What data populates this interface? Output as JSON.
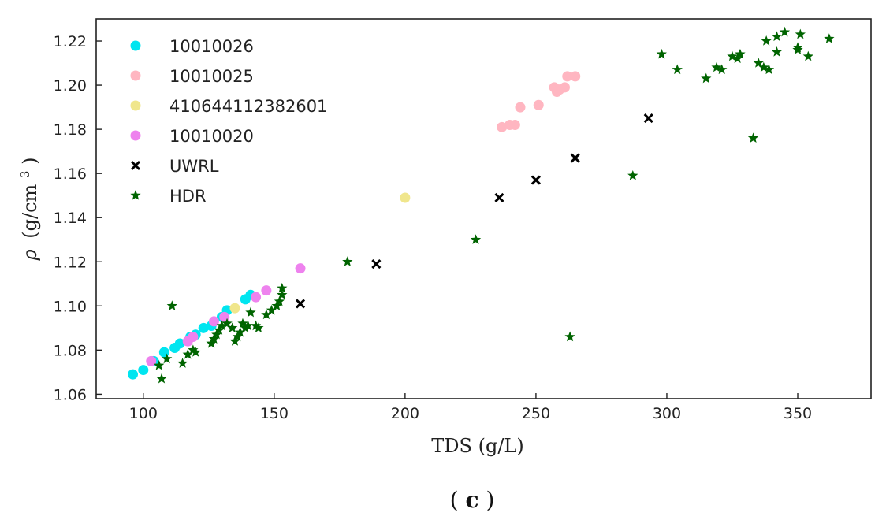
{
  "chart_data": {
    "type": "scatter",
    "title": "",
    "xlabel": "TDS (g/L)",
    "ylabel_symbol": "ρ",
    "ylabel_units": "(g/cm",
    "ylabel_sup": "3",
    "ylabel_close": ")",
    "xlim": [
      82,
      378
    ],
    "ylim": [
      1.058,
      1.23
    ],
    "xticks": [
      100,
      150,
      200,
      250,
      300,
      350
    ],
    "yticks": [
      1.06,
      1.08,
      1.1,
      1.12,
      1.14,
      1.16,
      1.18,
      1.2,
      1.22
    ],
    "grid": false,
    "legend_position": "top-left",
    "caption_open": "(",
    "caption_letter": "c",
    "caption_close": ")",
    "series": [
      {
        "name": "10010026",
        "marker": "circle",
        "color": "#00e5f0",
        "points": [
          [
            96,
            1.069
          ],
          [
            100,
            1.071
          ],
          [
            104,
            1.075
          ],
          [
            108,
            1.079
          ],
          [
            112,
            1.081
          ],
          [
            114,
            1.083
          ],
          [
            118,
            1.086
          ],
          [
            120,
            1.087
          ],
          [
            123,
            1.09
          ],
          [
            126,
            1.091
          ],
          [
            130,
            1.095
          ],
          [
            132,
            1.098
          ],
          [
            139,
            1.103
          ],
          [
            141,
            1.105
          ]
        ]
      },
      {
        "name": "10010025",
        "marker": "circle",
        "color": "#ffb6c1",
        "points": [
          [
            237,
            1.181
          ],
          [
            240,
            1.182
          ],
          [
            242,
            1.182
          ],
          [
            244,
            1.19
          ],
          [
            251,
            1.191
          ],
          [
            257,
            1.199
          ],
          [
            258,
            1.197
          ],
          [
            259,
            1.198
          ],
          [
            261,
            1.199
          ],
          [
            262,
            1.204
          ],
          [
            265,
            1.204
          ]
        ]
      },
      {
        "name": "410644112382601",
        "marker": "circle",
        "color": "#f0e68c",
        "points": [
          [
            135,
            1.099
          ],
          [
            200,
            1.149
          ]
        ]
      },
      {
        "name": "10010020",
        "marker": "circle",
        "color": "#ee82ee",
        "points": [
          [
            103,
            1.075
          ],
          [
            117,
            1.084
          ],
          [
            119,
            1.086
          ],
          [
            127,
            1.093
          ],
          [
            131,
            1.095
          ],
          [
            143,
            1.104
          ],
          [
            147,
            1.107
          ],
          [
            160,
            1.117
          ]
        ]
      },
      {
        "name": "UWRL",
        "marker": "x",
        "color": "#000000",
        "points": [
          [
            160,
            1.101
          ],
          [
            189,
            1.119
          ],
          [
            236,
            1.149
          ],
          [
            250,
            1.157
          ],
          [
            265,
            1.167
          ],
          [
            293,
            1.185
          ]
        ]
      },
      {
        "name": "HDR",
        "marker": "star",
        "color": "#006400",
        "points": [
          [
            107,
            1.067
          ],
          [
            106,
            1.073
          ],
          [
            109,
            1.076
          ],
          [
            111,
            1.1
          ],
          [
            115,
            1.074
          ],
          [
            117,
            1.078
          ],
          [
            119,
            1.08
          ],
          [
            120,
            1.079
          ],
          [
            126,
            1.083
          ],
          [
            127,
            1.085
          ],
          [
            128,
            1.087
          ],
          [
            129,
            1.089
          ],
          [
            130,
            1.091
          ],
          [
            132,
            1.092
          ],
          [
            134,
            1.09
          ],
          [
            135,
            1.084
          ],
          [
            136,
            1.086
          ],
          [
            137,
            1.088
          ],
          [
            138,
            1.092
          ],
          [
            139,
            1.09
          ],
          [
            140,
            1.091
          ],
          [
            141,
            1.097
          ],
          [
            143,
            1.091
          ],
          [
            144,
            1.09
          ],
          [
            147,
            1.096
          ],
          [
            149,
            1.098
          ],
          [
            151,
            1.1
          ],
          [
            152,
            1.102
          ],
          [
            153,
            1.105
          ],
          [
            153,
            1.108
          ],
          [
            178,
            1.12
          ],
          [
            227,
            1.13
          ],
          [
            263,
            1.086
          ],
          [
            287,
            1.159
          ],
          [
            298,
            1.214
          ],
          [
            304,
            1.207
          ],
          [
            315,
            1.203
          ],
          [
            319,
            1.208
          ],
          [
            321,
            1.207
          ],
          [
            325,
            1.213
          ],
          [
            327,
            1.212
          ],
          [
            328,
            1.214
          ],
          [
            333,
            1.176
          ],
          [
            335,
            1.21
          ],
          [
            337,
            1.208
          ],
          [
            338,
            1.22
          ],
          [
            339,
            1.207
          ],
          [
            342,
            1.215
          ],
          [
            342,
            1.222
          ],
          [
            345,
            1.224
          ],
          [
            350,
            1.217
          ],
          [
            351,
            1.223
          ],
          [
            350,
            1.216
          ],
          [
            354,
            1.213
          ],
          [
            362,
            1.221
          ]
        ]
      }
    ]
  }
}
